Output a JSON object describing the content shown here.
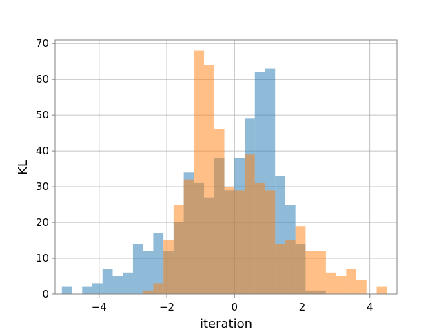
{
  "chart_data": {
    "type": "bar",
    "title": "",
    "xlabel": "iteration",
    "ylabel": "KL",
    "xlim": [
      -5.3,
      4.8
    ],
    "ylim": [
      0,
      71
    ],
    "xticks": [
      -4,
      -2,
      0,
      2,
      4
    ],
    "xtick_labels": [
      "−4",
      "−2",
      "0",
      "2",
      "4"
    ],
    "yticks": [
      0,
      10,
      20,
      30,
      40,
      50,
      60,
      70
    ],
    "ytick_labels": [
      "0",
      "10",
      "20",
      "30",
      "40",
      "50",
      "60",
      "70"
    ],
    "grid": true,
    "legend": "none",
    "bin_width": 0.3,
    "series": [
      {
        "color": "#1f77b4",
        "alpha": 0.5,
        "bins": [
          [
            -5.1,
            2
          ],
          [
            -4.5,
            2
          ],
          [
            -4.2,
            3
          ],
          [
            -3.9,
            7
          ],
          [
            -3.6,
            5
          ],
          [
            -3.3,
            6
          ],
          [
            -3.0,
            14
          ],
          [
            -2.7,
            12
          ],
          [
            -2.4,
            17
          ],
          [
            -2.1,
            12
          ],
          [
            -1.8,
            20
          ],
          [
            -1.5,
            34
          ],
          [
            -1.2,
            31
          ],
          [
            -0.9,
            27
          ],
          [
            -0.6,
            38
          ],
          [
            -0.3,
            29
          ],
          [
            0.0,
            38
          ],
          [
            0.3,
            49
          ],
          [
            0.6,
            62
          ],
          [
            0.9,
            63
          ],
          [
            1.2,
            33
          ],
          [
            1.5,
            25
          ],
          [
            1.8,
            14
          ],
          [
            2.1,
            1
          ],
          [
            2.4,
            1
          ]
        ]
      },
      {
        "color": "#ff7f0e",
        "alpha": 0.5,
        "bins": [
          [
            -2.7,
            1
          ],
          [
            -2.4,
            3
          ],
          [
            -2.1,
            15
          ],
          [
            -1.8,
            25
          ],
          [
            -1.5,
            32
          ],
          [
            -1.2,
            68
          ],
          [
            -0.9,
            64
          ],
          [
            -0.6,
            46
          ],
          [
            -0.3,
            30
          ],
          [
            0.0,
            29
          ],
          [
            0.3,
            39
          ],
          [
            0.6,
            31
          ],
          [
            0.9,
            29
          ],
          [
            1.2,
            14
          ],
          [
            1.5,
            15
          ],
          [
            1.8,
            19
          ],
          [
            2.1,
            12
          ],
          [
            2.4,
            12
          ],
          [
            2.7,
            6
          ],
          [
            3.0,
            5
          ],
          [
            3.3,
            7
          ],
          [
            3.6,
            4
          ],
          [
            4.2,
            2
          ]
        ]
      }
    ]
  }
}
